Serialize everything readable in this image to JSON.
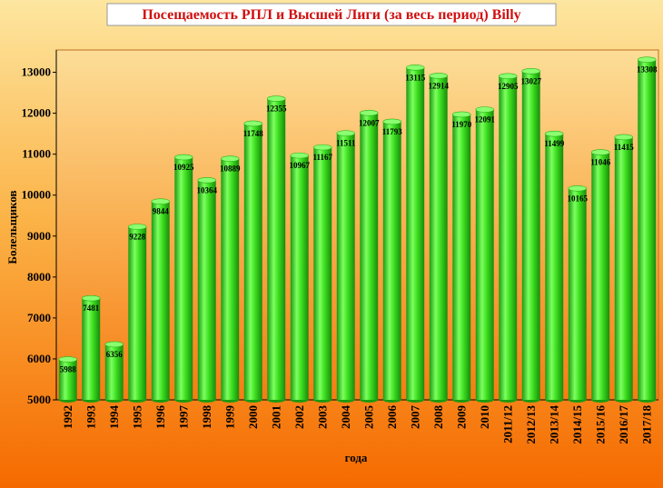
{
  "chart_data": {
    "type": "bar",
    "title": "Посещаемость РПЛ и Высшей Лиги (за весь период) Billy",
    "x_label": "года",
    "y_label": "Болельщиков",
    "categories": [
      "1992",
      "1993",
      "1994",
      "1995",
      "1996",
      "1997",
      "1998",
      "1999",
      "2000",
      "2001",
      "2002",
      "2003",
      "2004",
      "2005",
      "2006",
      "2007",
      "2008",
      "2009",
      "2010",
      "2011/12",
      "2012/13",
      "2013/14",
      "2014/15",
      "2015/16",
      "2016/17",
      "2017/18"
    ],
    "values": [
      5988,
      7481,
      6356,
      9228,
      9844,
      10925,
      10364,
      10889,
      11748,
      12355,
      10967,
      11167,
      11511,
      12007,
      11793,
      13115,
      12914,
      11970,
      12091,
      12905,
      13027,
      11499,
      10165,
      11046,
      11415,
      13308
    ],
    "color": "#33dd22",
    "ylim": [
      5000,
      13500
    ],
    "yticks": [
      5000,
      6000,
      7000,
      8000,
      9000,
      10000,
      11000,
      12000,
      13000
    ],
    "grid": false
  }
}
